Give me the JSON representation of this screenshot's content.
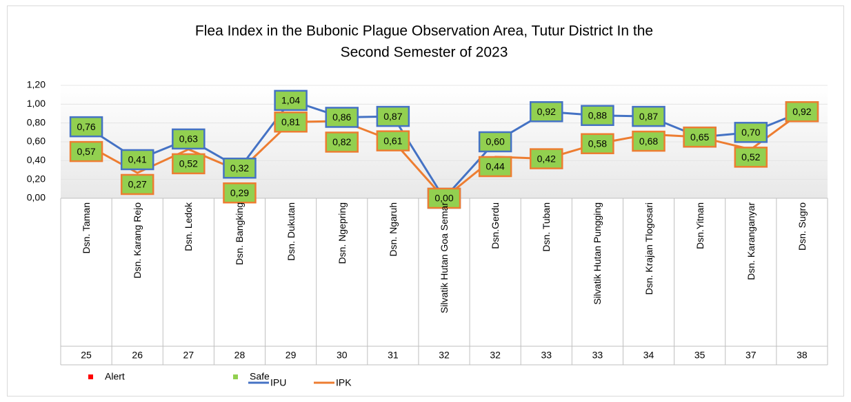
{
  "chart_data": {
    "type": "line",
    "title": "Flea Index in the Bubonic Plague Observation Area, Tutur District In the Second Semester of 2023",
    "categories": [
      "Dsn. Taman",
      "Dsn. Karang Rejo",
      "Dsn. Ledok",
      "Dsn. Bangking",
      "Dsn. Dukutan",
      "Dsn. Ngepring",
      "Dsn. Ngaruh",
      "Silvatik Hutan Goa Semar",
      "Dsn.Gerdu",
      "Dsn. Tuban",
      "Silvatik Hutan Pungging",
      "Dsn. Krajan Tlogosari",
      "Dsn.Yitnan",
      "Dsn. Karanganyar",
      "Dsn. Sugro"
    ],
    "week_labels": [
      25,
      26,
      27,
      28,
      29,
      30,
      31,
      32,
      32,
      33,
      33,
      34,
      35,
      37,
      38
    ],
    "series": [
      {
        "name": "IPU",
        "color": "#4472c4",
        "values": [
          0.76,
          0.41,
          0.63,
          0.32,
          1.04,
          0.86,
          0.87,
          0.0,
          0.6,
          0.92,
          0.88,
          0.87,
          0.65,
          0.7,
          0.92
        ],
        "value_labels": [
          "0,76",
          "0,41",
          "0,63",
          "0,32",
          "1,04",
          "0,86",
          "0,87",
          "0,00",
          "0,60",
          "0,92",
          "0,88",
          "0,87",
          "0,65",
          "0,70",
          "0,92"
        ]
      },
      {
        "name": "IPK",
        "color": "#ed7d31",
        "values": [
          0.57,
          0.27,
          0.52,
          0.29,
          0.81,
          0.82,
          0.61,
          0.0,
          0.44,
          0.42,
          0.58,
          0.68,
          0.65,
          0.52,
          0.92
        ],
        "value_labels": [
          "0,57",
          "0,27",
          "0,52",
          "0,29",
          "0,81",
          "0,82",
          "0,61",
          "0,00",
          "0,44",
          "0,42",
          "0,58",
          "0,68",
          "0,65",
          "0,52",
          "0,92"
        ]
      }
    ],
    "label_box_color": "#92d050",
    "status_legend": [
      {
        "name": "Alert",
        "color": "#ff0000"
      },
      {
        "name": "Safe",
        "color": "#92d050"
      }
    ],
    "ylim": [
      0,
      1.2
    ],
    "yticks": [
      {
        "value": 0,
        "label": "0,00"
      },
      {
        "value": 0.2,
        "label": "0,20"
      },
      {
        "value": 0.4,
        "label": "0,40"
      },
      {
        "value": 0.6,
        "label": "0,60"
      },
      {
        "value": 0.8,
        "label": "0,80"
      },
      {
        "value": 1.0,
        "label": "1,00"
      },
      {
        "value": 1.2,
        "label": "1,20"
      }
    ]
  }
}
